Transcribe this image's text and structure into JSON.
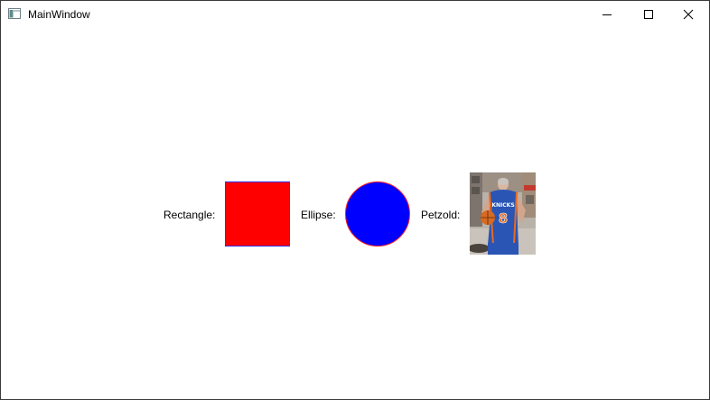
{
  "window": {
    "title": "MainWindow"
  },
  "caption_buttons": {
    "minimize_icon": "minimize-icon",
    "maximize_icon": "maximize-icon",
    "close_icon": "close-icon"
  },
  "content": {
    "rectangle_label": "Rectangle:",
    "ellipse_label": "Ellipse:",
    "petzold_label": "Petzold:",
    "rectangle": {
      "fill": "#ff0000",
      "stroke": "#3030ff"
    },
    "ellipse": {
      "fill": "#0000ff",
      "stroke": "#ff2020"
    },
    "photo": {
      "jersey_text": "KNICKS",
      "jersey_number": "8"
    }
  }
}
